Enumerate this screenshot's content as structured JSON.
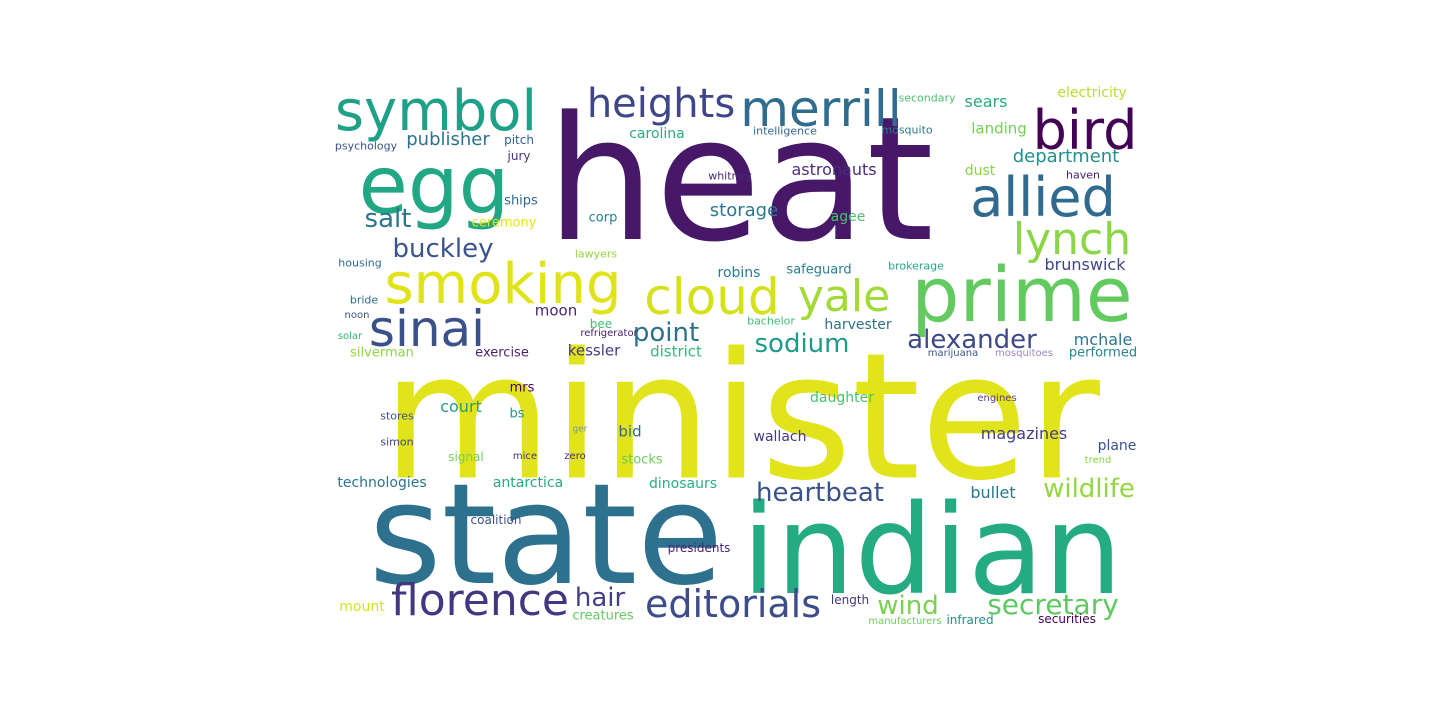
{
  "words": [
    {
      "text": "heat",
      "color": "#471868"
    },
    {
      "text": "minister",
      "color": "#e1e41a"
    },
    {
      "text": "state",
      "color": "#2e718e"
    },
    {
      "text": "indian",
      "color": "#25ab82"
    },
    {
      "text": "prime",
      "color": "#62ca5f"
    },
    {
      "text": "egg",
      "color": "#22a784"
    },
    {
      "text": "symbol",
      "color": "#1fa188"
    },
    {
      "text": "merrill",
      "color": "#2f6c8e"
    },
    {
      "text": "heights",
      "color": "#3f4788"
    },
    {
      "text": "bird",
      "color": "#440256"
    },
    {
      "text": "allied",
      "color": "#306a8e"
    },
    {
      "text": "smoking",
      "color": "#e0e319"
    },
    {
      "text": "cloud",
      "color": "#d5e21a"
    },
    {
      "text": "sinai",
      "color": "#3b518a"
    },
    {
      "text": "yale",
      "color": "#a2da37"
    },
    {
      "text": "lynch",
      "color": "#8ad645"
    },
    {
      "text": "florence",
      "color": "#453681"
    },
    {
      "text": "editorials",
      "color": "#3e4c8a"
    },
    {
      "text": "heartbeat",
      "color": "#3a538b"
    },
    {
      "text": "alexander",
      "color": "#3e4989"
    },
    {
      "text": "sodium",
      "color": "#1e9c89"
    },
    {
      "text": "point",
      "color": "#2c718e"
    },
    {
      "text": "secretary",
      "color": "#5ec962"
    },
    {
      "text": "wildlife",
      "color": "#93d741"
    },
    {
      "text": "wind",
      "color": "#7ad151"
    },
    {
      "text": "hair",
      "color": "#424186"
    },
    {
      "text": "buckley",
      "color": "#3a548c"
    },
    {
      "text": "salt",
      "color": "#2b758e"
    },
    {
      "text": "department",
      "color": "#21918c"
    },
    {
      "text": "publisher",
      "color": "#2c728e"
    },
    {
      "text": "storage",
      "color": "#2a788e"
    },
    {
      "text": "astronauts",
      "color": "#472d7b"
    },
    {
      "text": "magazines",
      "color": "#433e85"
    },
    {
      "text": "bullet",
      "color": "#2a778e"
    },
    {
      "text": "sears",
      "color": "#23a983"
    },
    {
      "text": "brunswick",
      "color": "#414487"
    },
    {
      "text": "landing",
      "color": "#75d054"
    },
    {
      "text": "electricity",
      "color": "#b8de29"
    },
    {
      "text": "court",
      "color": "#1f9e89"
    },
    {
      "text": "mchale",
      "color": "#2a768e"
    },
    {
      "text": "moon",
      "color": "#482576"
    },
    {
      "text": "kessler",
      "color": "#453882"
    },
    {
      "text": "district",
      "color": "#35b779"
    },
    {
      "text": "harvester",
      "color": "#2d708e"
    },
    {
      "text": "daughter",
      "color": "#48c16e"
    },
    {
      "text": "bid",
      "color": "#31678e"
    },
    {
      "text": "wallach",
      "color": "#443983"
    },
    {
      "text": "plane",
      "color": "#3b528b"
    },
    {
      "text": "dust",
      "color": "#86d549"
    },
    {
      "text": "agee",
      "color": "#4ac16d"
    },
    {
      "text": "carolina",
      "color": "#27ad81"
    },
    {
      "text": "robins",
      "color": "#277f8e"
    },
    {
      "text": "safeguard",
      "color": "#26818e"
    },
    {
      "text": "exercise",
      "color": "#481f70"
    },
    {
      "text": "mrs",
      "color": "#440154"
    },
    {
      "text": "antarctica",
      "color": "#25ac82"
    },
    {
      "text": "dinosaurs",
      "color": "#2ab07f"
    },
    {
      "text": "stocks",
      "color": "#6ccd5a"
    },
    {
      "text": "technologies",
      "color": "#2c738e"
    },
    {
      "text": "mount",
      "color": "#d2e21b"
    },
    {
      "text": "creatures",
      "color": "#63cb5f"
    },
    {
      "text": "performed",
      "color": "#24878e"
    },
    {
      "text": "corp",
      "color": "#277f8e"
    },
    {
      "text": "ships",
      "color": "#31688e"
    },
    {
      "text": "ceremony",
      "color": "#e5e419"
    },
    {
      "text": "silverman",
      "color": "#8bd646"
    },
    {
      "text": "bee",
      "color": "#3fbc73"
    },
    {
      "text": "length",
      "color": "#46337f"
    },
    {
      "text": "bs",
      "color": "#1f988b"
    },
    {
      "text": "infrared",
      "color": "#228d8d"
    },
    {
      "text": "securities",
      "color": "#440154"
    },
    {
      "text": "presidents",
      "color": "#482374"
    },
    {
      "text": "coalition",
      "color": "#3b528b"
    },
    {
      "text": "pitch",
      "color": "#34608d"
    },
    {
      "text": "jury",
      "color": "#46337e"
    },
    {
      "text": "psychology",
      "color": "#39558c"
    },
    {
      "text": "intelligence",
      "color": "#31688e"
    },
    {
      "text": "mosquito",
      "color": "#287c8e"
    },
    {
      "text": "secondary",
      "color": "#4ac16d"
    },
    {
      "text": "whitney",
      "color": "#472a7a"
    },
    {
      "text": "haven",
      "color": "#482173"
    },
    {
      "text": "housing",
      "color": "#2f6c8e"
    },
    {
      "text": "lawyers",
      "color": "#92d741"
    },
    {
      "text": "brokerage",
      "color": "#22a785"
    },
    {
      "text": "bride",
      "color": "#31688e"
    },
    {
      "text": "noon",
      "color": "#3b528b"
    },
    {
      "text": "solar",
      "color": "#35b779"
    },
    {
      "text": "refrigerator",
      "color": "#481c6e"
    },
    {
      "text": "bachelor",
      "color": "#42be71"
    },
    {
      "text": "marijuana",
      "color": "#3b528b"
    },
    {
      "text": "mosquitoes",
      "color": "#9e86c2"
    },
    {
      "text": "stores",
      "color": "#3b528b"
    },
    {
      "text": "simon",
      "color": "#414487"
    },
    {
      "text": "engines",
      "color": "#5c3c87"
    },
    {
      "text": "trend",
      "color": "#8ad645"
    },
    {
      "text": "signal",
      "color": "#6ece58"
    },
    {
      "text": "mice",
      "color": "#46327e"
    },
    {
      "text": "zero",
      "color": "#472c7a"
    },
    {
      "text": "ger",
      "color": "#7e8fa8"
    },
    {
      "text": "manufacturers",
      "color": "#6ece58"
    }
  ]
}
